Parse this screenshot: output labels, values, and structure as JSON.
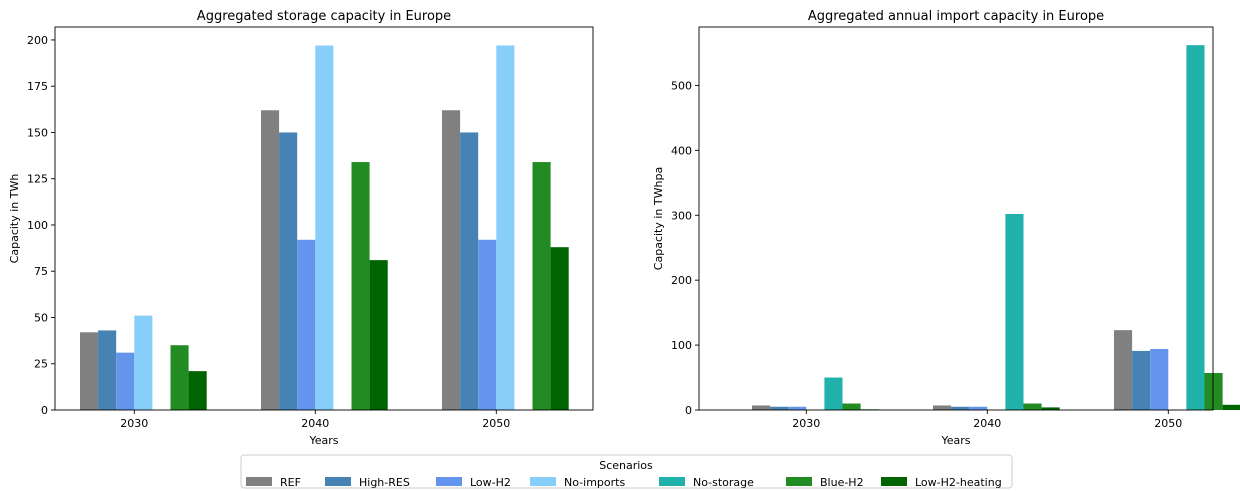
{
  "colors": {
    "REF": "#808080",
    "High-RES": "#4682b4",
    "Low-H2": "#6495ed",
    "No-imports": "#87cefa",
    "No-storage": "#20b2aa",
    "Blue-H2": "#228b22",
    "Low-H2-heating": "#006400"
  },
  "chart_data": [
    {
      "type": "bar",
      "title": "Aggregated storage capacity in Europe",
      "xlabel": "Years",
      "ylabel": "Capacity in TWh",
      "categories": [
        "2030",
        "2040",
        "2050"
      ],
      "ylim": [
        0,
        207
      ],
      "yticks": [
        0,
        25,
        50,
        75,
        100,
        125,
        150,
        175,
        200
      ],
      "series": [
        {
          "name": "REF",
          "values": [
            42,
            162,
            162
          ]
        },
        {
          "name": "High-RES",
          "values": [
            43,
            150,
            150
          ]
        },
        {
          "name": "Low-H2",
          "values": [
            31,
            92,
            92
          ]
        },
        {
          "name": "No-imports",
          "values": [
            51,
            197,
            197
          ]
        },
        {
          "name": "No-storage",
          "values": [
            0,
            0,
            0
          ]
        },
        {
          "name": "Blue-H2",
          "values": [
            35,
            134,
            134
          ]
        },
        {
          "name": "Low-H2-heating",
          "values": [
            21,
            81,
            88
          ]
        }
      ]
    },
    {
      "type": "bar",
      "title": "Aggregated annual import capacity in Europe",
      "xlabel": "Years",
      "ylabel": "Capacity in TWhpa",
      "categories": [
        "2030",
        "2040",
        "2050"
      ],
      "ylim": [
        0,
        590
      ],
      "yticks": [
        0,
        100,
        200,
        300,
        400,
        500
      ],
      "series": [
        {
          "name": "REF",
          "values": [
            7,
            7,
            123
          ]
        },
        {
          "name": "High-RES",
          "values": [
            5,
            5,
            91
          ]
        },
        {
          "name": "Low-H2",
          "values": [
            5,
            5,
            94
          ]
        },
        {
          "name": "No-imports",
          "values": [
            0,
            0,
            0
          ]
        },
        {
          "name": "No-storage",
          "values": [
            50,
            302,
            562
          ]
        },
        {
          "name": "Blue-H2",
          "values": [
            10,
            10,
            57
          ]
        },
        {
          "name": "Low-H2-heating",
          "values": [
            1,
            4,
            8
          ]
        }
      ]
    }
  ],
  "legend": {
    "title": "Scenarios",
    "placement": "bottom-center",
    "entries": [
      "REF",
      "High-RES",
      "Low-H2",
      "No-imports",
      "No-storage",
      "Blue-H2",
      "Low-H2-heating"
    ]
  }
}
